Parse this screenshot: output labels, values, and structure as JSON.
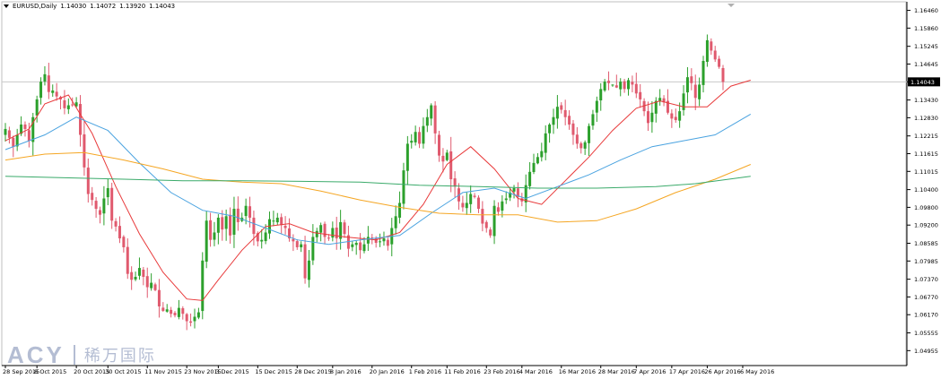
{
  "header": {
    "symbol": "EURUSD,Daily",
    "open": "1.14030",
    "high": "1.14072",
    "low": "1.13920",
    "close": "1.14043"
  },
  "watermark": {
    "en": "ACY",
    "cn": "稀万国际"
  },
  "colors": {
    "bull": "#2ca02c",
    "bear": "#e05a6e",
    "ma_fast": "#e8393a",
    "ma_mid": "#4aa3e0",
    "ma_slow": "#f5a623",
    "ma_long": "#3aaa6a",
    "grid": "#dddddd",
    "price_line": "#c8c8c8"
  },
  "chart_data": {
    "type": "candlestick",
    "title": "EURUSD,Daily",
    "ylim": [
      1.0445,
      1.1675
    ],
    "y_ticks": [
      "1.16460",
      "1.15860",
      "1.15245",
      "1.14645",
      "1.14043",
      "1.13430",
      "1.12830",
      "1.12215",
      "1.11615",
      "1.11015",
      "1.10400",
      "1.09800",
      "1.09200",
      "1.08585",
      "1.07985",
      "1.07370",
      "1.06770",
      "1.06170",
      "1.05555",
      "1.04955"
    ],
    "current_price": "1.14043",
    "x_labels": [
      {
        "i": 0,
        "label": "28 Sep 2015"
      },
      {
        "i": 8,
        "label": "8 Oct 2015"
      },
      {
        "i": 18,
        "label": "20 Oct 2015"
      },
      {
        "i": 26,
        "label": "30 Oct 2015"
      },
      {
        "i": 36,
        "label": "11 Nov 2015"
      },
      {
        "i": 46,
        "label": "23 Nov 2015"
      },
      {
        "i": 54,
        "label": "3 Dec 2015"
      },
      {
        "i": 64,
        "label": "15 Dec 2015"
      },
      {
        "i": 74,
        "label": "28 Dec 2015"
      },
      {
        "i": 83,
        "label": "8 Jan 2016"
      },
      {
        "i": 93,
        "label": "20 Jan 2016"
      },
      {
        "i": 103,
        "label": "1 Feb 2016"
      },
      {
        "i": 112,
        "label": "11 Feb 2016"
      },
      {
        "i": 122,
        "label": "23 Feb 2016"
      },
      {
        "i": 131,
        "label": "4 Mar 2016"
      },
      {
        "i": 141,
        "label": "16 Mar 2016"
      },
      {
        "i": 151,
        "label": "28 Mar 2016"
      },
      {
        "i": 160,
        "label": "7 Apr 2016"
      },
      {
        "i": 169,
        "label": "17 Apr 2016"
      },
      {
        "i": 178,
        "label": "26 Apr 2016"
      },
      {
        "i": 187,
        "label": "6 May 2016"
      }
    ],
    "closes": [
      1.1245,
      1.1215,
      1.1185,
      1.1225,
      1.126,
      1.1245,
      1.1205,
      1.1285,
      1.1345,
      1.1405,
      1.143,
      1.137,
      1.1375,
      1.1355,
      1.1345,
      1.1315,
      1.1325,
      1.1325,
      1.1335,
      1.1225,
      1.1115,
      1.1025,
      1.1005,
      1.0975,
      1.0955,
      1.101,
      1.1045,
      1.0935,
      1.0915,
      1.0875,
      1.0845,
      1.0755,
      1.0735,
      1.0745,
      1.0775,
      1.0745,
      1.071,
      1.0725,
      1.07,
      1.0645,
      1.063,
      1.0635,
      1.062,
      1.0615,
      1.064,
      1.062,
      1.0595,
      1.059,
      1.061,
      1.0625,
      1.08,
      1.0935,
      1.087,
      1.0895,
      1.0945,
      1.0905,
      1.095,
      1.0885,
      1.0975,
      1.093,
      1.0945,
      1.0985,
      1.0945,
      1.089,
      1.0865,
      1.087,
      1.0895,
      1.094,
      1.0935,
      1.0945,
      1.092,
      1.091,
      1.0875,
      1.0865,
      1.0845,
      1.0855,
      1.074,
      1.08,
      1.088,
      1.09,
      1.092,
      1.088,
      1.0875,
      1.091,
      1.0875,
      1.093,
      1.089,
      1.084,
      1.0855,
      1.086,
      1.0835,
      1.0855,
      1.088,
      1.0875,
      1.086,
      1.0865,
      1.0875,
      1.085,
      1.091,
      1.095,
      1.0995,
      1.1105,
      1.1195,
      1.1205,
      1.1235,
      1.1195,
      1.1255,
      1.1285,
      1.1325,
      1.123,
      1.1155,
      1.1135,
      1.1165,
      1.1075,
      1.105,
      1.1,
      1.098,
      1.0995,
      1.1025,
      1.1015,
      1.0975,
      1.0925,
      1.091,
      1.0885,
      1.0985,
      1.0965,
      1.1,
      1.101,
      1.103,
      1.1045,
      1.1015,
      1.1,
      1.1055,
      1.11,
      1.113,
      1.115,
      1.117,
      1.123,
      1.126,
      1.1285,
      1.132,
      1.131,
      1.1285,
      1.126,
      1.1225,
      1.1195,
      1.118,
      1.12,
      1.1255,
      1.1295,
      1.134,
      1.138,
      1.1405,
      1.14,
      1.1395,
      1.1385,
      1.1405,
      1.138,
      1.141,
      1.1395,
      1.1365,
      1.1345,
      1.1305,
      1.1265,
      1.13,
      1.134,
      1.135,
      1.1335,
      1.13,
      1.128,
      1.1275,
      1.1305,
      1.1365,
      1.142,
      1.14,
      1.135,
      1.1395,
      1.1475,
      1.1545,
      1.151,
      1.148,
      1.1455,
      1.1404
    ],
    "series": [
      {
        "key": "ma_fast",
        "color": "#e8393a",
        "values": [
          [
            0,
            1.1205
          ],
          [
            6,
            1.1245
          ],
          [
            10,
            1.133
          ],
          [
            16,
            1.136
          ],
          [
            22,
            1.123
          ],
          [
            28,
            1.105
          ],
          [
            34,
            1.089
          ],
          [
            40,
            1.076
          ],
          [
            46,
            1.067
          ],
          [
            50,
            1.0665
          ],
          [
            54,
            1.0735
          ],
          [
            60,
            1.0835
          ],
          [
            66,
            1.0915
          ],
          [
            72,
            1.0925
          ],
          [
            78,
            1.0895
          ],
          [
            86,
            1.088
          ],
          [
            94,
            1.087
          ],
          [
            100,
            1.0895
          ],
          [
            106,
            1.099
          ],
          [
            112,
            1.1125
          ],
          [
            118,
            1.1185
          ],
          [
            124,
            1.111
          ],
          [
            130,
            1.101
          ],
          [
            136,
            1.099
          ],
          [
            142,
            1.107
          ],
          [
            148,
            1.115
          ],
          [
            154,
            1.124
          ],
          [
            160,
            1.1315
          ],
          [
            166,
            1.134
          ],
          [
            172,
            1.132
          ],
          [
            178,
            1.132
          ],
          [
            184,
            1.139
          ],
          [
            189,
            1.141
          ]
        ]
      },
      {
        "key": "ma_mid",
        "color": "#4aa3e0",
        "values": [
          [
            0,
            1.1175
          ],
          [
            10,
            1.1225
          ],
          [
            18,
            1.1285
          ],
          [
            26,
            1.124
          ],
          [
            34,
            1.113
          ],
          [
            42,
            1.103
          ],
          [
            50,
            1.097
          ],
          [
            58,
            1.095
          ],
          [
            66,
            1.091
          ],
          [
            74,
            1.087
          ],
          [
            82,
            1.0855
          ],
          [
            90,
            1.087
          ],
          [
            100,
            1.0885
          ],
          [
            108,
            1.096
          ],
          [
            116,
            1.103
          ],
          [
            124,
            1.1045
          ],
          [
            132,
            1.101
          ],
          [
            140,
            1.105
          ],
          [
            148,
            1.109
          ],
          [
            156,
            1.114
          ],
          [
            164,
            1.1185
          ],
          [
            172,
            1.1205
          ],
          [
            180,
            1.1225
          ],
          [
            189,
            1.1295
          ]
        ]
      },
      {
        "key": "ma_slow",
        "color": "#f5a623",
        "values": [
          [
            0,
            1.114
          ],
          [
            10,
            1.116
          ],
          [
            20,
            1.1165
          ],
          [
            30,
            1.114
          ],
          [
            40,
            1.111
          ],
          [
            50,
            1.1075
          ],
          [
            60,
            1.1065
          ],
          [
            70,
            1.106
          ],
          [
            80,
            1.1035
          ],
          [
            90,
            1.1005
          ],
          [
            100,
            1.098
          ],
          [
            110,
            1.096
          ],
          [
            120,
            1.0955
          ],
          [
            130,
            1.0955
          ],
          [
            140,
            1.093
          ],
          [
            150,
            1.0935
          ],
          [
            160,
            1.0975
          ],
          [
            170,
            1.103
          ],
          [
            180,
            1.1075
          ],
          [
            189,
            1.1125
          ]
        ]
      },
      {
        "key": "ma_long",
        "color": "#3aaa6a",
        "values": [
          [
            0,
            1.1085
          ],
          [
            15,
            1.108
          ],
          [
            30,
            1.1075
          ],
          [
            45,
            1.107
          ],
          [
            60,
            1.107
          ],
          [
            75,
            1.1068
          ],
          [
            90,
            1.1065
          ],
          [
            105,
            1.1055
          ],
          [
            120,
            1.105
          ],
          [
            135,
            1.1045
          ],
          [
            150,
            1.1045
          ],
          [
            165,
            1.105
          ],
          [
            175,
            1.106
          ],
          [
            189,
            1.1085
          ]
        ]
      }
    ]
  }
}
